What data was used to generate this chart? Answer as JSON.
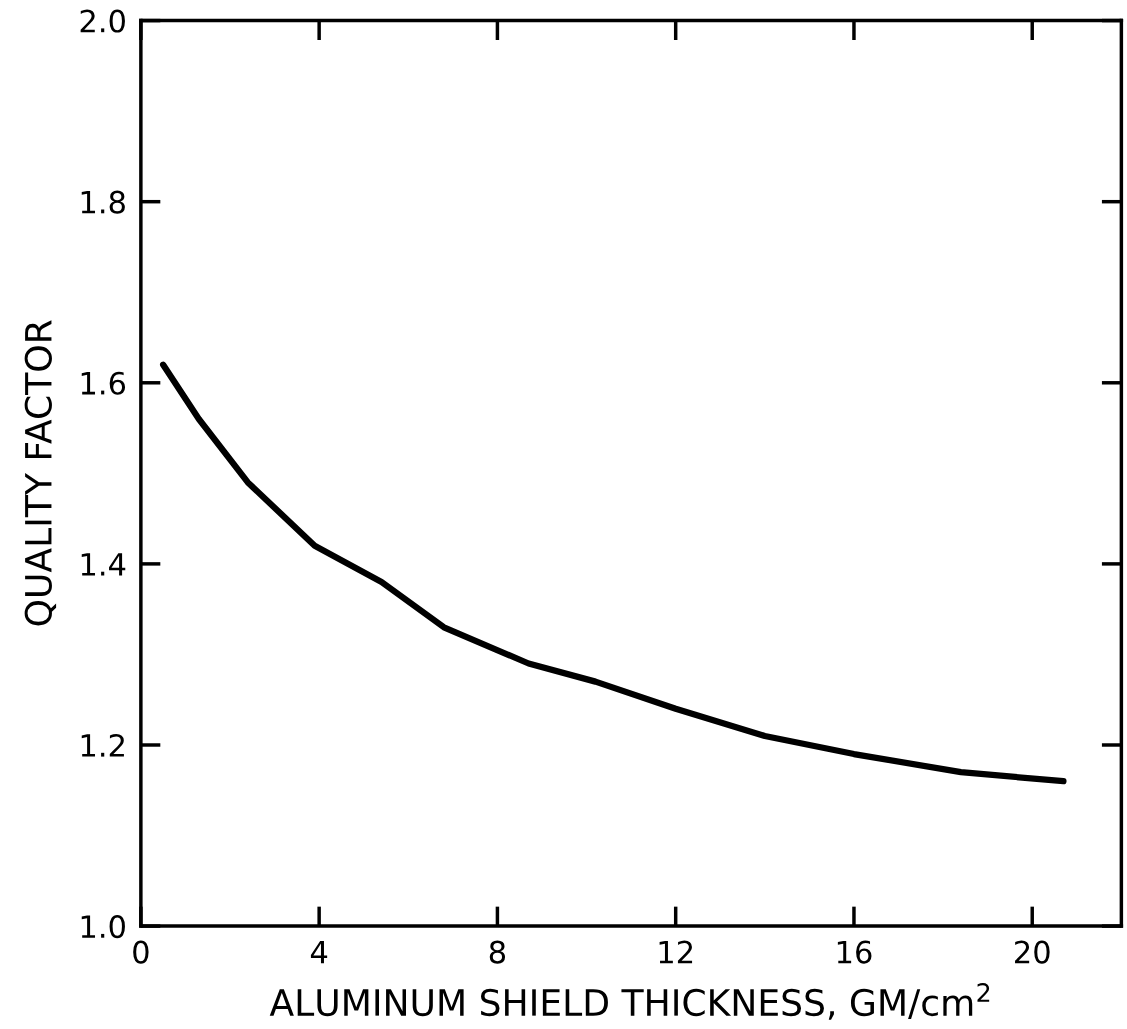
{
  "chart_data": {
    "type": "line",
    "xlabel": "ALUMINUM SHIELD THICKNESS, GM/cm$^{2}$",
    "ylabel": "QUALITY FACTOR",
    "series": [
      {
        "color": "#000000",
        "x": [
          0.5,
          1.3,
          2.4,
          3.9,
          5.4,
          6.8,
          8.7,
          10.2,
          12,
          14,
          16,
          18.4,
          20.7
        ],
        "values": [
          1.62,
          1.56,
          1.49,
          1.42,
          1.38,
          1.33,
          1.29,
          1.27,
          1.24,
          1.21,
          1.19,
          1.17,
          1.16
        ]
      }
    ],
    "xlim": [
      0,
      22
    ],
    "ylim": [
      1.0,
      2.0
    ],
    "xticks": [
      0,
      4,
      8,
      12,
      16,
      20
    ],
    "yticks": [
      {
        "value": 1.0,
        "label": "1.0"
      },
      1.2,
      1.4,
      1.6,
      1.8,
      {
        "value": 2.0,
        "label": "2.0"
      }
    ],
    "grid": false,
    "legend": false,
    "marker": "none",
    "line_style": "solid"
  }
}
